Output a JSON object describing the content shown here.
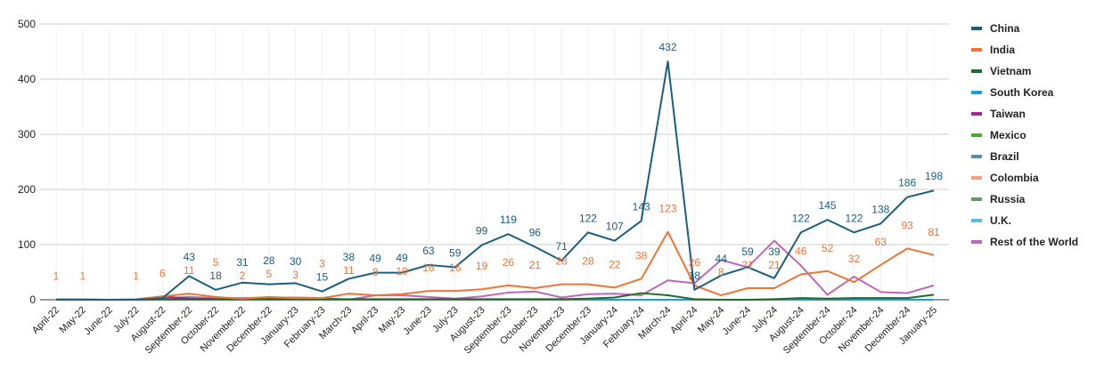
{
  "chart_data": {
    "type": "line",
    "title": "",
    "xlabel": "",
    "ylabel": "",
    "ylim": [
      0,
      500
    ],
    "yticks": [
      0,
      100,
      200,
      300,
      400,
      500
    ],
    "grid": true,
    "legend_position": "right",
    "categories": [
      "April-22",
      "May-22",
      "June-22",
      "July-22",
      "August-22",
      "September-22",
      "October-22",
      "November-22",
      "December-22",
      "January-23",
      "February-23",
      "March-23",
      "April-23",
      "May-23",
      "June-23",
      "July-23",
      "August-23",
      "September-23",
      "October-23",
      "November-23",
      "December-23",
      "January-24",
      "February-24",
      "March-24",
      "April-24",
      "May-24",
      "June-24",
      "July-24",
      "August-24",
      "September-24",
      "October-24",
      "November-24",
      "December-24",
      "January-25"
    ],
    "series": [
      {
        "name": "China",
        "color": "#1b5e7e",
        "values": [
          0,
          0,
          0,
          0,
          3,
          43,
          18,
          31,
          28,
          30,
          15,
          38,
          49,
          49,
          63,
          59,
          99,
          119,
          96,
          71,
          122,
          107,
          143,
          432,
          18,
          44,
          59,
          39,
          122,
          145,
          122,
          138,
          186,
          198
        ],
        "data_labels": [
          null,
          null,
          null,
          null,
          null,
          "43",
          "18",
          "31",
          "28",
          "30",
          "15",
          "38",
          "49",
          "49",
          "63",
          "59",
          "99",
          "119",
          "96",
          "71",
          "122",
          "107",
          "143",
          "432",
          "18",
          "44",
          "59",
          "39",
          "122",
          "145",
          "122",
          "138",
          "186",
          "198"
        ]
      },
      {
        "name": "India",
        "color": "#f07535",
        "values": [
          1,
          1,
          0,
          1,
          6,
          11,
          5,
          2,
          5,
          3,
          3,
          11,
          8,
          10,
          16,
          16,
          19,
          26,
          21,
          28,
          28,
          22,
          38,
          123,
          26,
          8,
          21,
          21,
          46,
          52,
          32,
          63,
          93,
          81
        ],
        "data_labels": [
          "1",
          "1",
          null,
          "1",
          "6",
          "11",
          "5",
          "2",
          "5",
          "3",
          "3",
          "11",
          "8",
          "10",
          "16",
          "16",
          "19",
          "26",
          "21",
          "28",
          "28",
          "22",
          "38",
          "123",
          "26",
          "8",
          "21",
          "21",
          "46",
          "52",
          "32",
          "63",
          "93",
          "81"
        ]
      },
      {
        "name": "Vietnam",
        "color": "#1e6b2c",
        "values": [
          0,
          0,
          0,
          0,
          1,
          1,
          1,
          1,
          1,
          1,
          1,
          1,
          1,
          1,
          1,
          1,
          1,
          1,
          1,
          1,
          2,
          4,
          12,
          8,
          1,
          0,
          0,
          1,
          3,
          2,
          3,
          3,
          3,
          9
        ]
      },
      {
        "name": "South Korea",
        "color": "#1a9ed8",
        "values": [
          0,
          0,
          0,
          0,
          0,
          0,
          0,
          0,
          0,
          0,
          0,
          0,
          0,
          0,
          0,
          0,
          0,
          0,
          0,
          0,
          0,
          0,
          0,
          0,
          0,
          0,
          0,
          0,
          0,
          0,
          0,
          0,
          0,
          0
        ]
      },
      {
        "name": "Taiwan",
        "color": "#9c2a8f",
        "values": [
          0,
          0,
          0,
          0,
          6,
          2,
          1,
          1,
          1,
          1,
          1,
          0,
          0,
          0,
          0,
          0,
          0,
          0,
          0,
          0,
          0,
          0,
          0,
          0,
          0,
          0,
          0,
          0,
          0,
          0,
          0,
          0,
          0,
          0
        ]
      },
      {
        "name": "Mexico",
        "color": "#4caa2a",
        "values": [
          0,
          0,
          0,
          0,
          0,
          0,
          0,
          0,
          0,
          0,
          0,
          0,
          0,
          0,
          0,
          0,
          0,
          0,
          0,
          0,
          0,
          0,
          0,
          0,
          0,
          0,
          0,
          0,
          0,
          0,
          0,
          0,
          0,
          0
        ]
      },
      {
        "name": "Brazil",
        "color": "#5b8fad",
        "values": [
          0,
          0,
          0,
          0,
          0,
          0,
          0,
          0,
          0,
          0,
          0,
          0,
          0,
          0,
          0,
          0,
          0,
          0,
          0,
          0,
          0,
          0,
          0,
          0,
          0,
          0,
          0,
          0,
          0,
          0,
          0,
          0,
          0,
          0
        ]
      },
      {
        "name": "Colombia",
        "color": "#f4a07a",
        "values": [
          0,
          0,
          0,
          0,
          0,
          0,
          0,
          0,
          0,
          0,
          0,
          0,
          0,
          0,
          0,
          0,
          0,
          0,
          0,
          0,
          0,
          0,
          0,
          0,
          0,
          0,
          0,
          0,
          0,
          0,
          0,
          0,
          0,
          0
        ]
      },
      {
        "name": "Russia",
        "color": "#5e9e63",
        "values": [
          0,
          0,
          0,
          0,
          0,
          0,
          0,
          0,
          0,
          0,
          0,
          0,
          0,
          0,
          0,
          0,
          0,
          0,
          0,
          0,
          0,
          0,
          0,
          0,
          0,
          0,
          0,
          0,
          0,
          0,
          0,
          0,
          0,
          0
        ]
      },
      {
        "name": "U.K.",
        "color": "#5bbde6",
        "values": [
          0,
          0,
          0,
          0,
          0,
          0,
          0,
          0,
          0,
          0,
          0,
          0,
          0,
          0,
          0,
          0,
          0,
          0,
          0,
          0,
          0,
          0,
          0,
          0,
          0,
          0,
          0,
          0,
          0,
          0,
          0,
          0,
          0,
          0
        ]
      },
      {
        "name": "Rest of the World",
        "color": "#c066b8",
        "values": [
          0,
          0,
          0,
          0,
          3,
          5,
          3,
          3,
          4,
          4,
          3,
          0,
          8,
          8,
          5,
          2,
          6,
          13,
          15,
          4,
          10,
          11,
          8,
          35,
          30,
          72,
          59,
          107,
          62,
          9,
          42,
          14,
          12,
          26
        ]
      }
    ]
  }
}
